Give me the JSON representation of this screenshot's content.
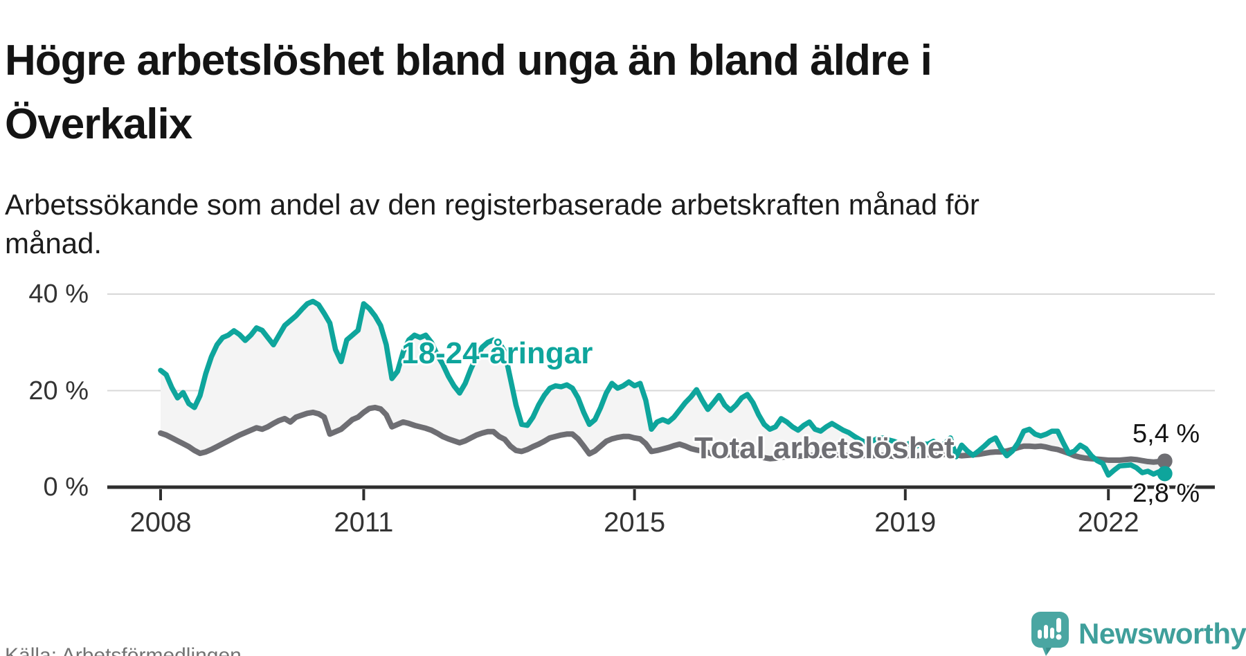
{
  "title": {
    "line1": "Högre arbetslöshet bland unga än bland äldre i",
    "line2": "Överkalix"
  },
  "subtitle": {
    "line1": "Arbetssökande som andel av den registerbaserade arbetskraften månad för",
    "line2": "månad."
  },
  "source": {
    "label": "Källa: Arbetsförmedlingen"
  },
  "branding": {
    "name": "Newsworthy",
    "icon": "speech-bubble-bar-chart-icon",
    "icon_color": "#4aa6a2",
    "icon_shade_color": "#3a8f8c",
    "text_color": "#3f9f9b"
  },
  "chart_data": {
    "type": "line",
    "title": "Högre arbetslöshet bland unga än bland äldre i Överkalix",
    "subtitle": "Arbetssökande som andel av den registerbaserade arbetskraften månad för månad.",
    "unit": "%",
    "frequency": "monthly",
    "x_start": "2008-01",
    "x_end": "2022-11",
    "ylim": [
      0,
      43
    ],
    "grid": "horizontal-only",
    "grid_color": "#d8d8d8",
    "axis_color": "#2e2e2e",
    "fill_between_color": "#f4f4f4",
    "x_ticks": [
      {
        "label": "2008",
        "year": 2008
      },
      {
        "label": "2011",
        "year": 2011
      },
      {
        "label": "2015",
        "year": 2015
      },
      {
        "label": "2019",
        "year": 2019
      },
      {
        "label": "2022",
        "year": 2022
      }
    ],
    "y_ticks": [
      {
        "label": "0 %",
        "value": 0
      },
      {
        "label": "20 %",
        "value": 20
      },
      {
        "label": "40 %",
        "value": 40
      }
    ],
    "series": [
      {
        "name": "18-24-åringar",
        "color": "#0ea59c",
        "end_value": 2.8,
        "end_label": "2,8 %",
        "values": [
          24.2,
          23.3,
          20.6,
          18.5,
          19.6,
          17.3,
          16.5,
          19.0,
          23.5,
          27.0,
          29.5,
          31.0,
          31.5,
          32.4,
          31.6,
          30.4,
          31.5,
          33.0,
          32.5,
          31.0,
          29.5,
          31.5,
          33.5,
          34.5,
          35.5,
          36.8,
          38.0,
          38.5,
          37.8,
          36.0,
          34.0,
          28.5,
          26.0,
          30.5,
          31.5,
          32.5,
          38.0,
          37.0,
          35.5,
          33.5,
          29.5,
          22.5,
          24.0,
          28.0,
          30.5,
          31.5,
          31.0,
          31.5,
          30.0,
          27.5,
          25.5,
          23.0,
          21.0,
          19.5,
          21.5,
          24.5,
          27.0,
          29.0,
          30.0,
          30.5,
          30.0,
          28.0,
          22.5,
          17.0,
          13.0,
          12.8,
          14.5,
          17.0,
          19.0,
          20.5,
          21.0,
          20.8,
          21.2,
          20.5,
          18.5,
          15.5,
          13.0,
          14.0,
          16.5,
          19.5,
          21.5,
          20.5,
          21.0,
          21.8,
          21.0,
          21.5,
          18.0,
          12.0,
          13.5,
          14.0,
          13.5,
          14.5,
          16.0,
          17.5,
          18.7,
          20.2,
          18.0,
          16.1,
          17.5,
          19.0,
          17.0,
          15.9,
          17.0,
          18.5,
          19.2,
          17.5,
          15.0,
          13.0,
          12.0,
          12.5,
          14.2,
          13.5,
          12.5,
          11.8,
          12.8,
          13.5,
          12.0,
          11.6,
          12.5,
          13.2,
          12.5,
          11.8,
          11.3,
          10.5,
          9.8,
          9.2,
          9.5,
          10.0,
          10.2,
          9.8,
          9.5,
          9.0,
          8.7,
          9.2,
          8.5,
          9.0,
          8.9,
          9.5,
          8.5,
          9.0,
          10.2,
          6.3,
          8.7,
          7.5,
          6.6,
          7.5,
          8.5,
          9.6,
          10.2,
          8.0,
          6.5,
          7.5,
          9.2,
          11.6,
          12.0,
          11.0,
          10.6,
          11.0,
          11.6,
          11.6,
          9.2,
          7.0,
          7.5,
          8.7,
          8.0,
          6.5,
          5.5,
          4.9,
          2.5,
          3.5,
          4.4,
          4.5,
          4.6,
          4.0,
          3.0,
          3.3,
          2.7,
          3.2,
          2.8
        ]
      },
      {
        "name": "Total arbetslöshet",
        "color": "#6e6e73",
        "end_value": 5.4,
        "end_label": "5,4 %",
        "values": [
          11.2,
          10.8,
          10.2,
          9.6,
          9.0,
          8.4,
          7.6,
          7.0,
          7.3,
          7.8,
          8.4,
          9.0,
          9.6,
          10.2,
          10.8,
          11.3,
          11.8,
          12.3,
          12.0,
          12.5,
          13.2,
          13.8,
          14.2,
          13.5,
          14.5,
          14.9,
          15.3,
          15.5,
          15.2,
          14.5,
          11.0,
          11.5,
          12.0,
          13.0,
          14.0,
          14.5,
          15.5,
          16.3,
          16.5,
          16.2,
          15.0,
          12.5,
          13.0,
          13.5,
          13.2,
          12.8,
          12.5,
          12.2,
          11.8,
          11.2,
          10.5,
          10.0,
          9.6,
          9.2,
          9.6,
          10.2,
          10.8,
          11.2,
          11.5,
          11.5,
          10.5,
          9.9,
          8.5,
          7.6,
          7.4,
          7.8,
          8.4,
          8.9,
          9.5,
          10.2,
          10.5,
          10.8,
          11.0,
          11.0,
          10.0,
          8.5,
          6.9,
          7.5,
          8.5,
          9.5,
          10.0,
          10.3,
          10.5,
          10.5,
          10.2,
          10.0,
          9.0,
          7.4,
          7.6,
          7.9,
          8.2,
          8.6,
          8.9,
          8.5,
          8.0,
          7.7,
          7.5,
          7.2,
          6.8,
          6.3,
          6.5,
          6.8,
          7.0,
          7.2,
          7.3,
          7.0,
          6.5,
          6.1,
          5.9,
          6.0,
          6.2,
          6.3,
          6.3,
          6.4,
          6.5,
          6.6,
          6.6,
          6.6,
          6.7,
          6.7,
          6.7,
          6.6,
          6.5,
          6.4,
          6.5,
          6.6,
          6.5,
          6.6,
          6.6,
          6.5,
          6.4,
          6.5,
          6.5,
          6.6,
          6.5,
          6.6,
          6.7,
          6.8,
          6.7,
          6.8,
          6.9,
          6.7,
          6.5,
          6.6,
          6.7,
          6.8,
          7.0,
          7.2,
          7.3,
          7.3,
          7.5,
          7.8,
          8.2,
          8.5,
          8.5,
          8.4,
          8.5,
          8.3,
          8.0,
          7.8,
          7.4,
          7.0,
          6.5,
          6.2,
          6.0,
          5.9,
          5.8,
          5.7,
          5.6,
          5.6,
          5.6,
          5.7,
          5.8,
          5.7,
          5.5,
          5.3,
          5.2,
          5.3,
          5.4
        ]
      }
    ]
  }
}
